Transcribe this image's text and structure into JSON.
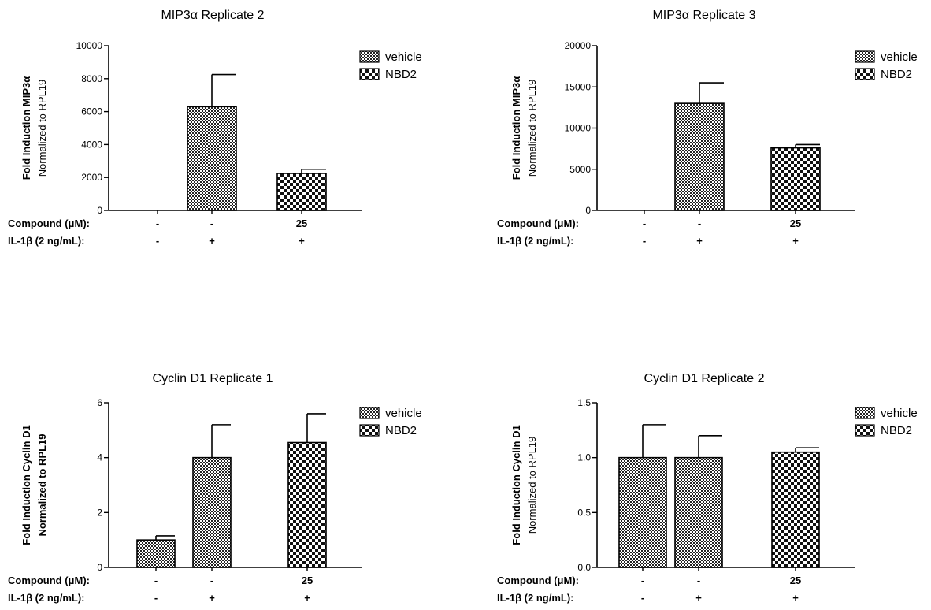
{
  "legend_labels": {
    "vehicle": "vehicle",
    "nbd2": "NBD2"
  },
  "row_labels": {
    "compound": "Compound (μM):",
    "il1b": "IL-1β (2 ng/mL):"
  },
  "chart_data": [
    {
      "type": "bar",
      "title": "MIP3α Replicate 2",
      "ylabel_line1": "Fold Induction MIP3α",
      "ylabel_line2": "Normalized to RPL19",
      "ylim": [
        0,
        10000
      ],
      "yticks": [
        "0",
        "2000",
        "4000",
        "6000",
        "8000",
        "10000"
      ],
      "series": [
        {
          "values": [
            0,
            6300,
            2250
          ],
          "errors": [
            0,
            1950,
            250
          ],
          "patterns": [
            "vehicle",
            "vehicle",
            "nbd2"
          ]
        }
      ],
      "compound": [
        "-",
        "-",
        "25"
      ],
      "il1b": [
        "-",
        "+",
        "+"
      ],
      "legend": "top-right"
    },
    {
      "type": "bar",
      "title": "MIP3α Replicate 3",
      "ylabel_line1": "Fold Induction MIP3α",
      "ylabel_line2": "Normalized to RPL19",
      "ylim": [
        0,
        20000
      ],
      "yticks": [
        "0",
        "5000",
        "10000",
        "15000",
        "20000"
      ],
      "series": [
        {
          "values": [
            0,
            13000,
            7600
          ],
          "errors": [
            0,
            2500,
            400
          ],
          "patterns": [
            "vehicle",
            "vehicle",
            "nbd2"
          ]
        }
      ],
      "compound": [
        "-",
        "-",
        "25"
      ],
      "il1b": [
        "-",
        "+",
        "+"
      ],
      "legend": "top-right"
    },
    {
      "type": "bar",
      "title": "Cyclin D1 Replicate 1",
      "ylabel_line1": "Fold Induction Cyclin D1",
      "ylabel_line2": "Normalized to RPL19",
      "ylim": [
        0,
        6
      ],
      "yticks": [
        "0",
        "2",
        "4",
        "6"
      ],
      "series": [
        {
          "values": [
            1.0,
            4.0,
            4.55
          ],
          "errors": [
            0.15,
            1.2,
            1.05
          ],
          "patterns": [
            "vehicle",
            "vehicle",
            "nbd2"
          ]
        }
      ],
      "compound": [
        "-",
        "-",
        "25"
      ],
      "il1b": [
        "-",
        "+",
        "+"
      ],
      "legend": "top-right"
    },
    {
      "type": "bar",
      "title": "Cyclin D1 Replicate 2",
      "ylabel_line1": "Fold Induction Cyclin D1",
      "ylabel_line2": "Normalized to RPL19",
      "ylim": [
        0,
        1.5
      ],
      "yticks": [
        "0.0",
        "0.5",
        "1.0",
        "1.5"
      ],
      "series": [
        {
          "values": [
            1.0,
            1.0,
            1.05
          ],
          "errors": [
            0.3,
            0.2,
            0.04
          ],
          "patterns": [
            "vehicle",
            "vehicle",
            "nbd2"
          ]
        }
      ],
      "compound": [
        "-",
        "-",
        "25"
      ],
      "il1b": [
        "-",
        "+",
        "+"
      ],
      "legend": "top-right"
    }
  ]
}
